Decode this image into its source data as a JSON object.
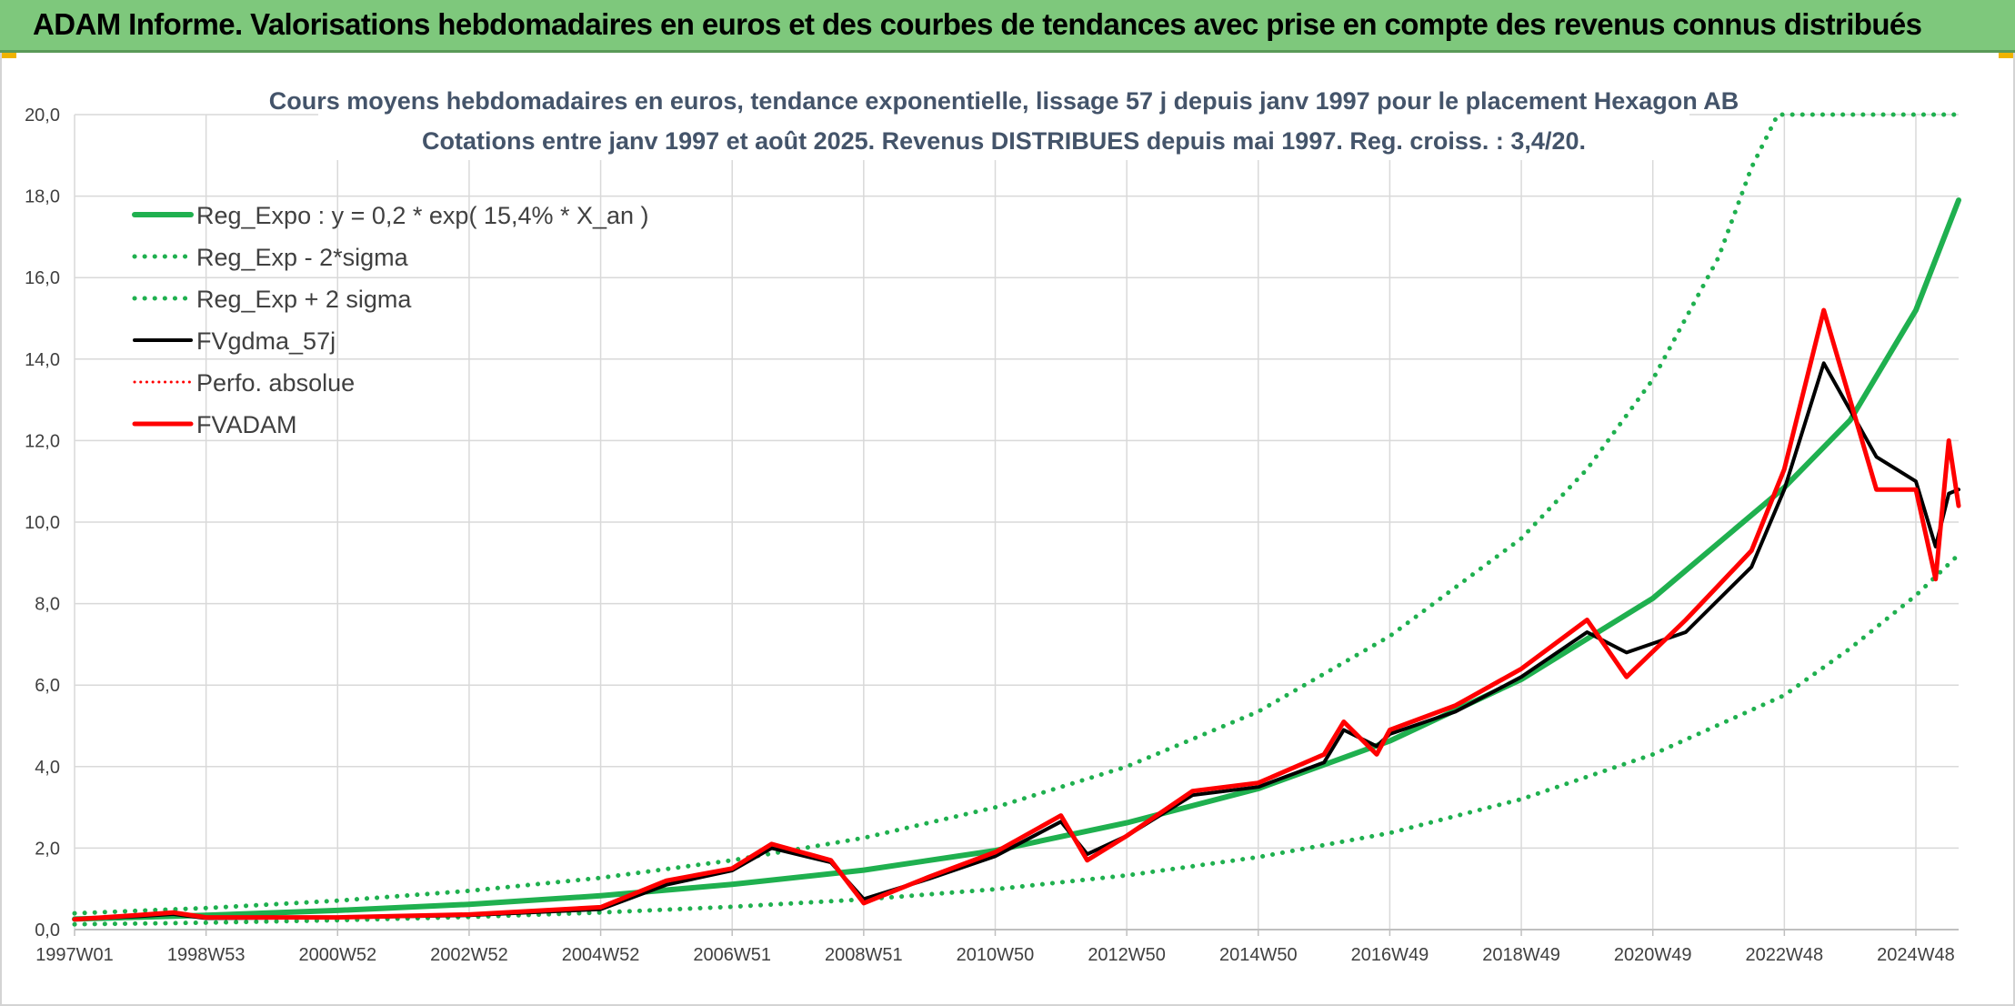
{
  "header": {
    "title": "ADAM Informe. Valorisations hebdomadaires en euros et des courbes de tendances avec prise en compte des revenus connus distribués",
    "background": "#7ec87c"
  },
  "chart_data": {
    "type": "line",
    "title": "Cours moyens hebdomadaires en euros, tendance exponentielle, lissage 57 j depuis janv 1997 pour le placement Hexagon AB",
    "subtitle": "Cotations entre janv 1997 et août 2025. Revenus DISTRIBUES depuis mai 1997. Reg. croiss. : 3,4/20.",
    "xlabel": "",
    "ylabel": "",
    "xlim": [
      1997.0,
      2025.65
    ],
    "ylim": [
      0,
      20
    ],
    "grid": true,
    "legend_position": "top-left",
    "y_ticks": [
      "0,0",
      "2,0",
      "4,0",
      "6,0",
      "8,0",
      "10,0",
      "12,0",
      "14,0",
      "16,0",
      "18,0",
      "20,0"
    ],
    "x_ticks": [
      {
        "label": "1997W01",
        "x": 1997.0
      },
      {
        "label": "1998W53",
        "x": 1999.0
      },
      {
        "label": "2000W52",
        "x": 2001.0
      },
      {
        "label": "2002W52",
        "x": 2003.0
      },
      {
        "label": "2004W52",
        "x": 2005.0
      },
      {
        "label": "2006W51",
        "x": 2007.0
      },
      {
        "label": "2008W51",
        "x": 2009.0
      },
      {
        "label": "2010W50",
        "x": 2011.0
      },
      {
        "label": "2012W50",
        "x": 2013.0
      },
      {
        "label": "2014W50",
        "x": 2015.0
      },
      {
        "label": "2016W49",
        "x": 2017.0
      },
      {
        "label": "2018W49",
        "x": 2019.0
      },
      {
        "label": "2020W49",
        "x": 2021.0
      },
      {
        "label": "2022W48",
        "x": 2023.0
      },
      {
        "label": "2024W48",
        "x": 2025.0
      }
    ],
    "series": [
      {
        "name": "Reg_Expo : y = 0,2 * exp( 15,4% *  X_an )",
        "color": "#1fb04f",
        "style": "solid",
        "width": 6,
        "points": [
          [
            1997.0,
            0.26
          ],
          [
            1999.0,
            0.35
          ],
          [
            2001.0,
            0.47
          ],
          [
            2003.0,
            0.62
          ],
          [
            2005.0,
            0.83
          ],
          [
            2007.0,
            1.11
          ],
          [
            2009.0,
            1.46
          ],
          [
            2011.0,
            1.94
          ],
          [
            2013.0,
            2.62
          ],
          [
            2015.0,
            3.46
          ],
          [
            2017.0,
            4.63
          ],
          [
            2019.0,
            6.14
          ],
          [
            2021.0,
            8.13
          ],
          [
            2023.0,
            10.85
          ],
          [
            2024.0,
            12.5
          ],
          [
            2025.0,
            15.2
          ],
          [
            2025.65,
            17.9
          ]
        ]
      },
      {
        "name": "Reg_Exp - 2*sigma",
        "color": "#1fb04f",
        "style": "dotted",
        "width": 5,
        "points": [
          [
            1997.0,
            0.13
          ],
          [
            1999.0,
            0.17
          ],
          [
            2001.0,
            0.23
          ],
          [
            2003.0,
            0.31
          ],
          [
            2005.0,
            0.42
          ],
          [
            2007.0,
            0.56
          ],
          [
            2009.0,
            0.74
          ],
          [
            2011.0,
            0.99
          ],
          [
            2013.0,
            1.33
          ],
          [
            2015.0,
            1.78
          ],
          [
            2017.0,
            2.37
          ],
          [
            2019.0,
            3.2
          ],
          [
            2021.0,
            4.3
          ],
          [
            2023.0,
            5.75
          ],
          [
            2024.0,
            6.9
          ],
          [
            2025.0,
            8.2
          ],
          [
            2025.65,
            9.2
          ]
        ]
      },
      {
        "name": "Reg_Exp + 2 sigma",
        "color": "#1fb04f",
        "style": "dotted",
        "width": 5,
        "points": [
          [
            1997.0,
            0.4
          ],
          [
            1999.0,
            0.53
          ],
          [
            2001.0,
            0.71
          ],
          [
            2003.0,
            0.95
          ],
          [
            2005.0,
            1.27
          ],
          [
            2007.0,
            1.7
          ],
          [
            2009.0,
            2.25
          ],
          [
            2011.0,
            3.0
          ],
          [
            2013.0,
            4.0
          ],
          [
            2015.0,
            5.35
          ],
          [
            2017.0,
            7.2
          ],
          [
            2019.0,
            9.6
          ],
          [
            2020.0,
            11.3
          ],
          [
            2021.0,
            13.5
          ],
          [
            2022.0,
            16.5
          ],
          [
            2022.5,
            18.7
          ],
          [
            2022.9,
            20.0
          ],
          [
            2025.65,
            20.0
          ]
        ]
      },
      {
        "name": "FVgdma_57j",
        "color": "#000000",
        "style": "solid",
        "width": 4,
        "points": [
          [
            1997.0,
            0.25
          ],
          [
            1998.0,
            0.33
          ],
          [
            1998.5,
            0.38
          ],
          [
            1999.0,
            0.28
          ],
          [
            2001.0,
            0.3
          ],
          [
            2003.0,
            0.35
          ],
          [
            2005.0,
            0.5
          ],
          [
            2006.0,
            1.1
          ],
          [
            2007.0,
            1.45
          ],
          [
            2007.6,
            2.0
          ],
          [
            2008.5,
            1.65
          ],
          [
            2009.0,
            0.75
          ],
          [
            2010.0,
            1.25
          ],
          [
            2011.0,
            1.8
          ],
          [
            2012.0,
            2.65
          ],
          [
            2012.4,
            1.85
          ],
          [
            2013.0,
            2.3
          ],
          [
            2014.0,
            3.3
          ],
          [
            2015.0,
            3.5
          ],
          [
            2016.0,
            4.1
          ],
          [
            2016.3,
            4.9
          ],
          [
            2016.8,
            4.5
          ],
          [
            2017.0,
            4.8
          ],
          [
            2018.0,
            5.35
          ],
          [
            2019.0,
            6.2
          ],
          [
            2020.0,
            7.3
          ],
          [
            2020.6,
            6.8
          ],
          [
            2021.5,
            7.3
          ],
          [
            2022.5,
            8.9
          ],
          [
            2023.0,
            10.8
          ],
          [
            2023.6,
            13.9
          ],
          [
            2024.4,
            11.6
          ],
          [
            2025.0,
            11.0
          ],
          [
            2025.3,
            9.4
          ],
          [
            2025.5,
            10.7
          ],
          [
            2025.65,
            10.8
          ]
        ]
      },
      {
        "name": "Perfo. absolue",
        "color": "#ff0000",
        "style": "dotted",
        "width": 3,
        "points": []
      },
      {
        "name": "FVADAM",
        "color": "#ff0000",
        "style": "solid",
        "width": 5,
        "points": [
          [
            1997.0,
            0.25
          ],
          [
            1998.0,
            0.36
          ],
          [
            1998.5,
            0.42
          ],
          [
            1999.0,
            0.3
          ],
          [
            2001.0,
            0.3
          ],
          [
            2003.0,
            0.37
          ],
          [
            2005.0,
            0.55
          ],
          [
            2006.0,
            1.2
          ],
          [
            2007.0,
            1.5
          ],
          [
            2007.6,
            2.1
          ],
          [
            2008.5,
            1.7
          ],
          [
            2009.0,
            0.65
          ],
          [
            2010.0,
            1.3
          ],
          [
            2011.0,
            1.9
          ],
          [
            2012.0,
            2.8
          ],
          [
            2012.4,
            1.7
          ],
          [
            2013.0,
            2.3
          ],
          [
            2014.0,
            3.4
          ],
          [
            2015.0,
            3.6
          ],
          [
            2016.0,
            4.3
          ],
          [
            2016.3,
            5.1
          ],
          [
            2016.8,
            4.3
          ],
          [
            2017.0,
            4.9
          ],
          [
            2018.0,
            5.5
          ],
          [
            2019.0,
            6.4
          ],
          [
            2020.0,
            7.6
          ],
          [
            2020.6,
            6.2
          ],
          [
            2021.5,
            7.6
          ],
          [
            2022.5,
            9.3
          ],
          [
            2023.0,
            11.3
          ],
          [
            2023.6,
            15.2
          ],
          [
            2024.4,
            10.8
          ],
          [
            2025.0,
            10.8
          ],
          [
            2025.3,
            8.6
          ],
          [
            2025.5,
            12.0
          ],
          [
            2025.65,
            10.4
          ]
        ]
      }
    ]
  }
}
